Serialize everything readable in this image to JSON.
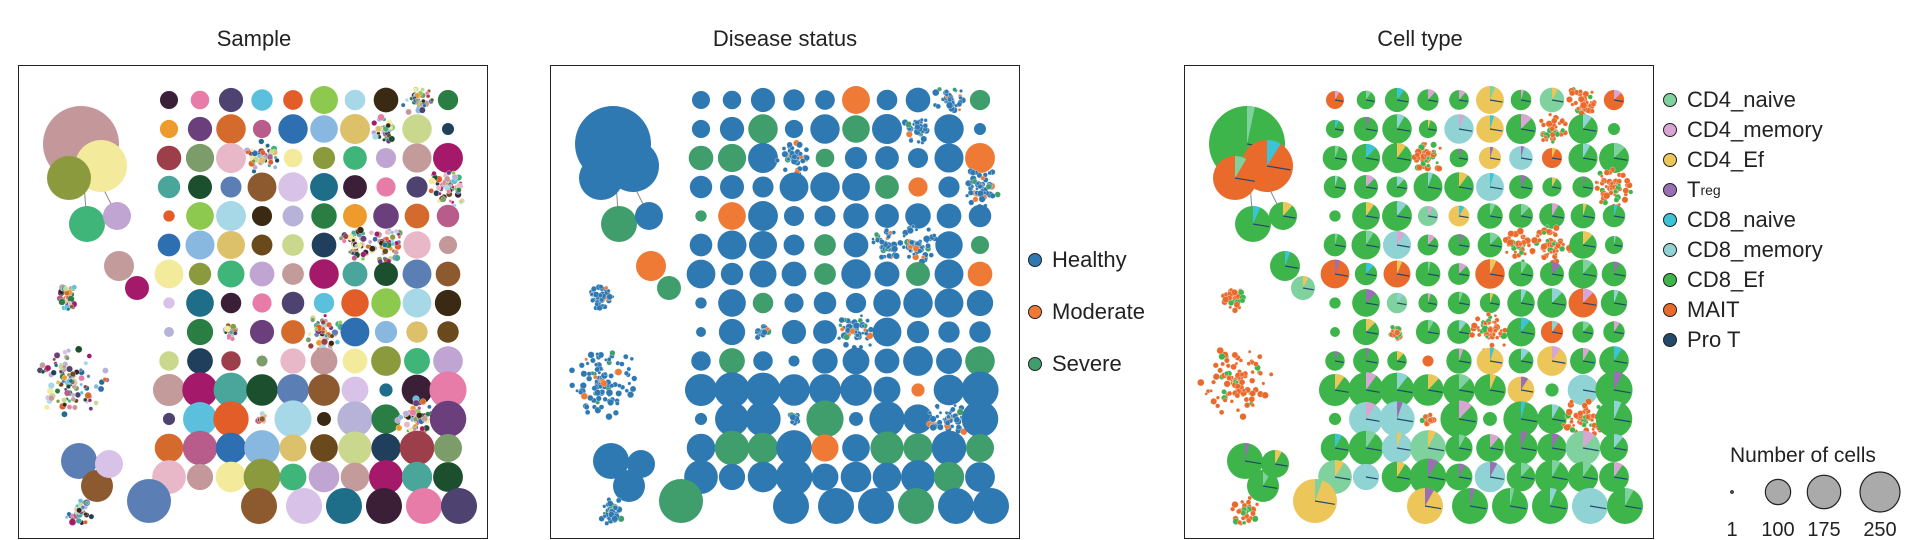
{
  "chart_data": [
    {
      "type": "scatter",
      "title": "Sample",
      "coloring": "per-sample (many distinct colors)",
      "legend": null
    },
    {
      "type": "scatter",
      "title": "Disease status",
      "legend_placement": "right",
      "categories": [
        {
          "name": "Healthy",
          "color": "#2f79b3"
        },
        {
          "name": "Moderate",
          "color": "#ef7a35"
        },
        {
          "name": "Severe",
          "color": "#3f9e6b"
        }
      ]
    },
    {
      "type": "scatter",
      "title": "Cell type",
      "legend_placement": "right",
      "categories": [
        {
          "name": "CD4_naive",
          "color": "#7fd19d"
        },
        {
          "name": "CD4_memory",
          "color": "#d9a6d3"
        },
        {
          "name": "CD4_Ef",
          "color": "#edc65a"
        },
        {
          "name": "T",
          "sub": "reg",
          "color": "#9a6fb4"
        },
        {
          "name": "CD8_naive",
          "color": "#3cc3d6"
        },
        {
          "name": "CD8_memory",
          "color": "#8fd3d5"
        },
        {
          "name": "CD8_Ef",
          "color": "#3db54a"
        },
        {
          "name": "MAIT",
          "color": "#ea6a2c"
        },
        {
          "name": "Pro T",
          "color": "#24496b"
        }
      ],
      "size_legend": {
        "title": "Number of cells",
        "values": [
          1,
          100,
          175,
          250
        ],
        "labels": [
          "1",
          "100",
          "175",
          "250"
        ]
      }
    }
  ]
}
